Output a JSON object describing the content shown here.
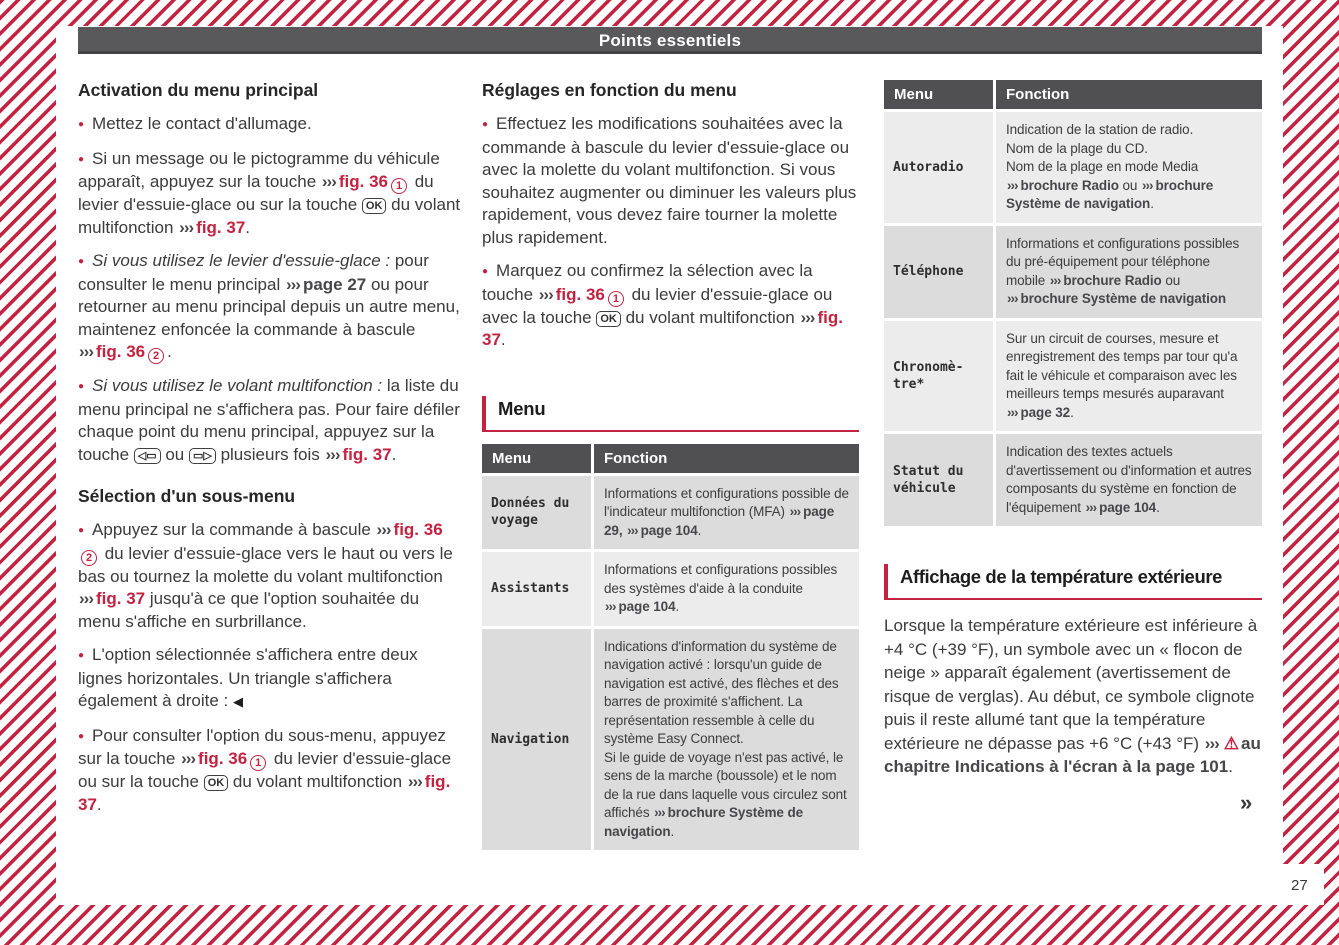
{
  "header": {
    "title": "Points essentiels"
  },
  "footer": {
    "page_number": "27"
  },
  "glyphs": {
    "chevrons": "›››",
    "warning": "⚠",
    "selected_triangle": "◀",
    "continuation": "»"
  },
  "colors": {
    "accent_red": "#c32340",
    "bar_gray": "#59595b",
    "table_header_gray": "#505053",
    "row_dark": "#dcdcdc",
    "row_light": "#ececec",
    "text_dark": "#262626",
    "text_body": "#3b3b3b"
  },
  "left_column": {
    "heading1": "Activation du menu principal",
    "p1": [
      {
        "t": "text",
        "v": "Mettez le contact d'allumage."
      }
    ],
    "p2": [
      {
        "t": "text",
        "v": "Si un message ou le pictogramme du véhicule apparaît, appuyez sur la touche "
      },
      {
        "t": "chev"
      },
      {
        "t": "ref",
        "v": "fig. 36"
      },
      {
        "t": "circ",
        "v": "1"
      },
      {
        "t": "text",
        "v": " du levier d'essuie-glace ou sur la touche "
      },
      {
        "t": "key",
        "v": "OK"
      },
      {
        "t": "text",
        "v": " du volant multifonction "
      },
      {
        "t": "chev"
      },
      {
        "t": "ref",
        "v": "fig. 37"
      },
      {
        "t": "text",
        "v": "."
      }
    ],
    "p3": [
      {
        "t": "i",
        "v": "Si vous utilisez le levier d'essuie-glace :"
      },
      {
        "t": "text",
        "v": " pour consulter le menu principal "
      },
      {
        "t": "chev"
      },
      {
        "t": "pref",
        "v": "page 27"
      },
      {
        "t": "text",
        "v": " ou pour retourner au menu principal depuis un autre menu, maintenez enfoncée la commande à bascule "
      },
      {
        "t": "chev"
      },
      {
        "t": "ref",
        "v": "fig. 36"
      },
      {
        "t": "circ",
        "v": "2"
      },
      {
        "t": "text",
        "v": "."
      }
    ],
    "p4": [
      {
        "t": "i",
        "v": "Si vous utilisez le volant multifonction :"
      },
      {
        "t": "text",
        "v": " la liste du menu principal ne s'affichera pas. Pour faire défiler chaque point du menu principal, appuyez sur la touche "
      },
      {
        "t": "key",
        "v": "◁▭"
      },
      {
        "t": "text",
        "v": " ou "
      },
      {
        "t": "key",
        "v": "▭▷"
      },
      {
        "t": "text",
        "v": " plusieurs fois "
      },
      {
        "t": "chev"
      },
      {
        "t": "ref",
        "v": "fig. 37"
      },
      {
        "t": "text",
        "v": "."
      }
    ],
    "heading2": "Sélection d'un sous-menu",
    "p5": [
      {
        "t": "text",
        "v": "Appuyez sur la commande à bascule "
      },
      {
        "t": "chev"
      },
      {
        "t": "ref",
        "v": "fig. 36"
      },
      {
        "t": "circ",
        "v": "2"
      },
      {
        "t": "text",
        "v": " du levier d'essuie-glace vers le haut ou vers le bas ou tournez la molette du volant multifonction "
      },
      {
        "t": "chev"
      },
      {
        "t": "ref",
        "v": "fig. 37"
      },
      {
        "t": "text",
        "v": " jusqu'à ce que l'option souhaitée du menu s'affiche en surbrillance."
      }
    ],
    "p6": [
      {
        "t": "text",
        "v": "L'option sélectionnée s'affichera entre deux lignes horizontales. Un triangle s'affichera également à droite : "
      },
      {
        "t": "tri"
      }
    ],
    "p7": [
      {
        "t": "text",
        "v": "Pour consulter l'option du sous-menu, appuyez sur la touche "
      },
      {
        "t": "chev"
      },
      {
        "t": "ref",
        "v": "fig. 36"
      },
      {
        "t": "circ",
        "v": "1"
      },
      {
        "t": "text",
        "v": " du levier d'essuie-glace ou sur la touche "
      },
      {
        "t": "key",
        "v": "OK"
      },
      {
        "t": "text",
        "v": " du volant multifonction "
      },
      {
        "t": "chev"
      },
      {
        "t": "ref",
        "v": "fig. 37"
      },
      {
        "t": "text",
        "v": "."
      }
    ]
  },
  "middle_column": {
    "heading": "Réglages en fonction du menu",
    "p1": [
      {
        "t": "text",
        "v": "Effectuez les modifications souhaitées avec la commande à bascule du levier d'essuie-glace ou avec la molette du volant multifonction. Si vous souhaitez augmenter ou diminuer les valeurs plus rapidement, vous devez faire tourner la molette plus rapidement."
      }
    ],
    "p2": [
      {
        "t": "text",
        "v": "Marquez ou confirmez la sélection avec la touche "
      },
      {
        "t": "chev"
      },
      {
        "t": "ref",
        "v": "fig. 36"
      },
      {
        "t": "circ",
        "v": "1"
      },
      {
        "t": "text",
        "v": " du levier d'essuie-glace ou avec la touche "
      },
      {
        "t": "key",
        "v": "OK"
      },
      {
        "t": "text",
        "v": " du volant multifonction "
      },
      {
        "t": "chev"
      },
      {
        "t": "ref",
        "v": "fig. 37"
      },
      {
        "t": "text",
        "v": "."
      }
    ],
    "section_title": "Menu",
    "table": {
      "headers": [
        "Menu",
        "Fonction"
      ],
      "rows": [
        {
          "menu": "Données du\nvoyage",
          "fonction": [
            {
              "t": "text",
              "v": "Informations et configurations possible de l'indicateur multifonction (MFA) "
            },
            {
              "t": "chev"
            },
            {
              "t": "pref",
              "v": "page 29,"
            },
            {
              "t": "text",
              "v": " "
            },
            {
              "t": "chev"
            },
            {
              "t": "pref",
              "v": "page 104"
            },
            {
              "t": "text",
              "v": "."
            }
          ]
        },
        {
          "menu": "Assistants",
          "fonction": [
            {
              "t": "text",
              "v": "Informations et configurations possibles des systèmes d'aide à la conduite "
            },
            {
              "t": "chev"
            },
            {
              "t": "pref",
              "v": "page 104"
            },
            {
              "t": "text",
              "v": "."
            }
          ]
        },
        {
          "menu": "Navigation",
          "fonction": [
            {
              "t": "text",
              "v": "Indications d'information du système de navigation activé : lorsqu'un guide de navigation est activé, des flèches et des barres de proximité s'affichent. La représentation ressemble à celle du système Easy Connect."
            },
            {
              "t": "br"
            },
            {
              "t": "text",
              "v": "Si le guide de voyage n'est pas activé, le sens de la marche (boussole) et le nom de la rue dans laquelle vous circulez sont affichés "
            },
            {
              "t": "chev"
            },
            {
              "t": "pref",
              "v": "brochure Système de navigation"
            },
            {
              "t": "text",
              "v": "."
            }
          ]
        }
      ]
    }
  },
  "right_column": {
    "table": {
      "headers": [
        "Menu",
        "Fonction"
      ],
      "rows": [
        {
          "menu": "Autoradio",
          "fonction": [
            {
              "t": "text",
              "v": "Indication de la station de radio."
            },
            {
              "t": "br"
            },
            {
              "t": "text",
              "v": "Nom de la plage du CD."
            },
            {
              "t": "br"
            },
            {
              "t": "text",
              "v": "Nom de la plage en mode Media "
            },
            {
              "t": "chev"
            },
            {
              "t": "pref",
              "v": "brochure Radio"
            },
            {
              "t": "text",
              "v": " ou "
            },
            {
              "t": "chev"
            },
            {
              "t": "pref",
              "v": "brochure Système de navigation"
            },
            {
              "t": "text",
              "v": "."
            }
          ]
        },
        {
          "menu": "Téléphone",
          "fonction": [
            {
              "t": "text",
              "v": "Informations et configurations possibles du pré-équipement pour téléphone mobile "
            },
            {
              "t": "chev"
            },
            {
              "t": "pref",
              "v": "brochure Radio"
            },
            {
              "t": "text",
              "v": " ou "
            },
            {
              "t": "chev"
            },
            {
              "t": "pref",
              "v": "brochure Système de navigation"
            }
          ]
        },
        {
          "menu": "Chronomè-\ntre*",
          "fonction": [
            {
              "t": "text",
              "v": "Sur un circuit de courses, mesure et enregistrement des temps par tour qu'a fait le véhicule et comparaison avec les meilleurs temps mesurés auparavant "
            },
            {
              "t": "chev"
            },
            {
              "t": "pref",
              "v": "page 32"
            },
            {
              "t": "text",
              "v": "."
            }
          ]
        },
        {
          "menu": "Statut du\nvéhicule",
          "fonction": [
            {
              "t": "text",
              "v": "Indication des textes actuels d'avertissement ou d'information et autres composants du système en fonction de l'équipement "
            },
            {
              "t": "chev"
            },
            {
              "t": "pref",
              "v": "page 104"
            },
            {
              "t": "text",
              "v": "."
            }
          ]
        }
      ]
    },
    "section_title": "Affichage de la température extérieure",
    "paragraph": [
      {
        "t": "text",
        "v": "Lorsque la température extérieure est inférieure à +4 °C (+39 °F), un symbole avec un « flocon de neige » apparaît également (avertissement de risque de verglas). Au début, ce symbole clignote puis il reste allumé tant que la température extérieure ne dépasse pas +6 °C (+43 °F) "
      },
      {
        "t": "chev"
      },
      {
        "t": "warn"
      },
      {
        "t": "pref",
        "v": "au chapitre Indications à l'écran à la page 101"
      },
      {
        "t": "text",
        "v": "."
      }
    ]
  }
}
